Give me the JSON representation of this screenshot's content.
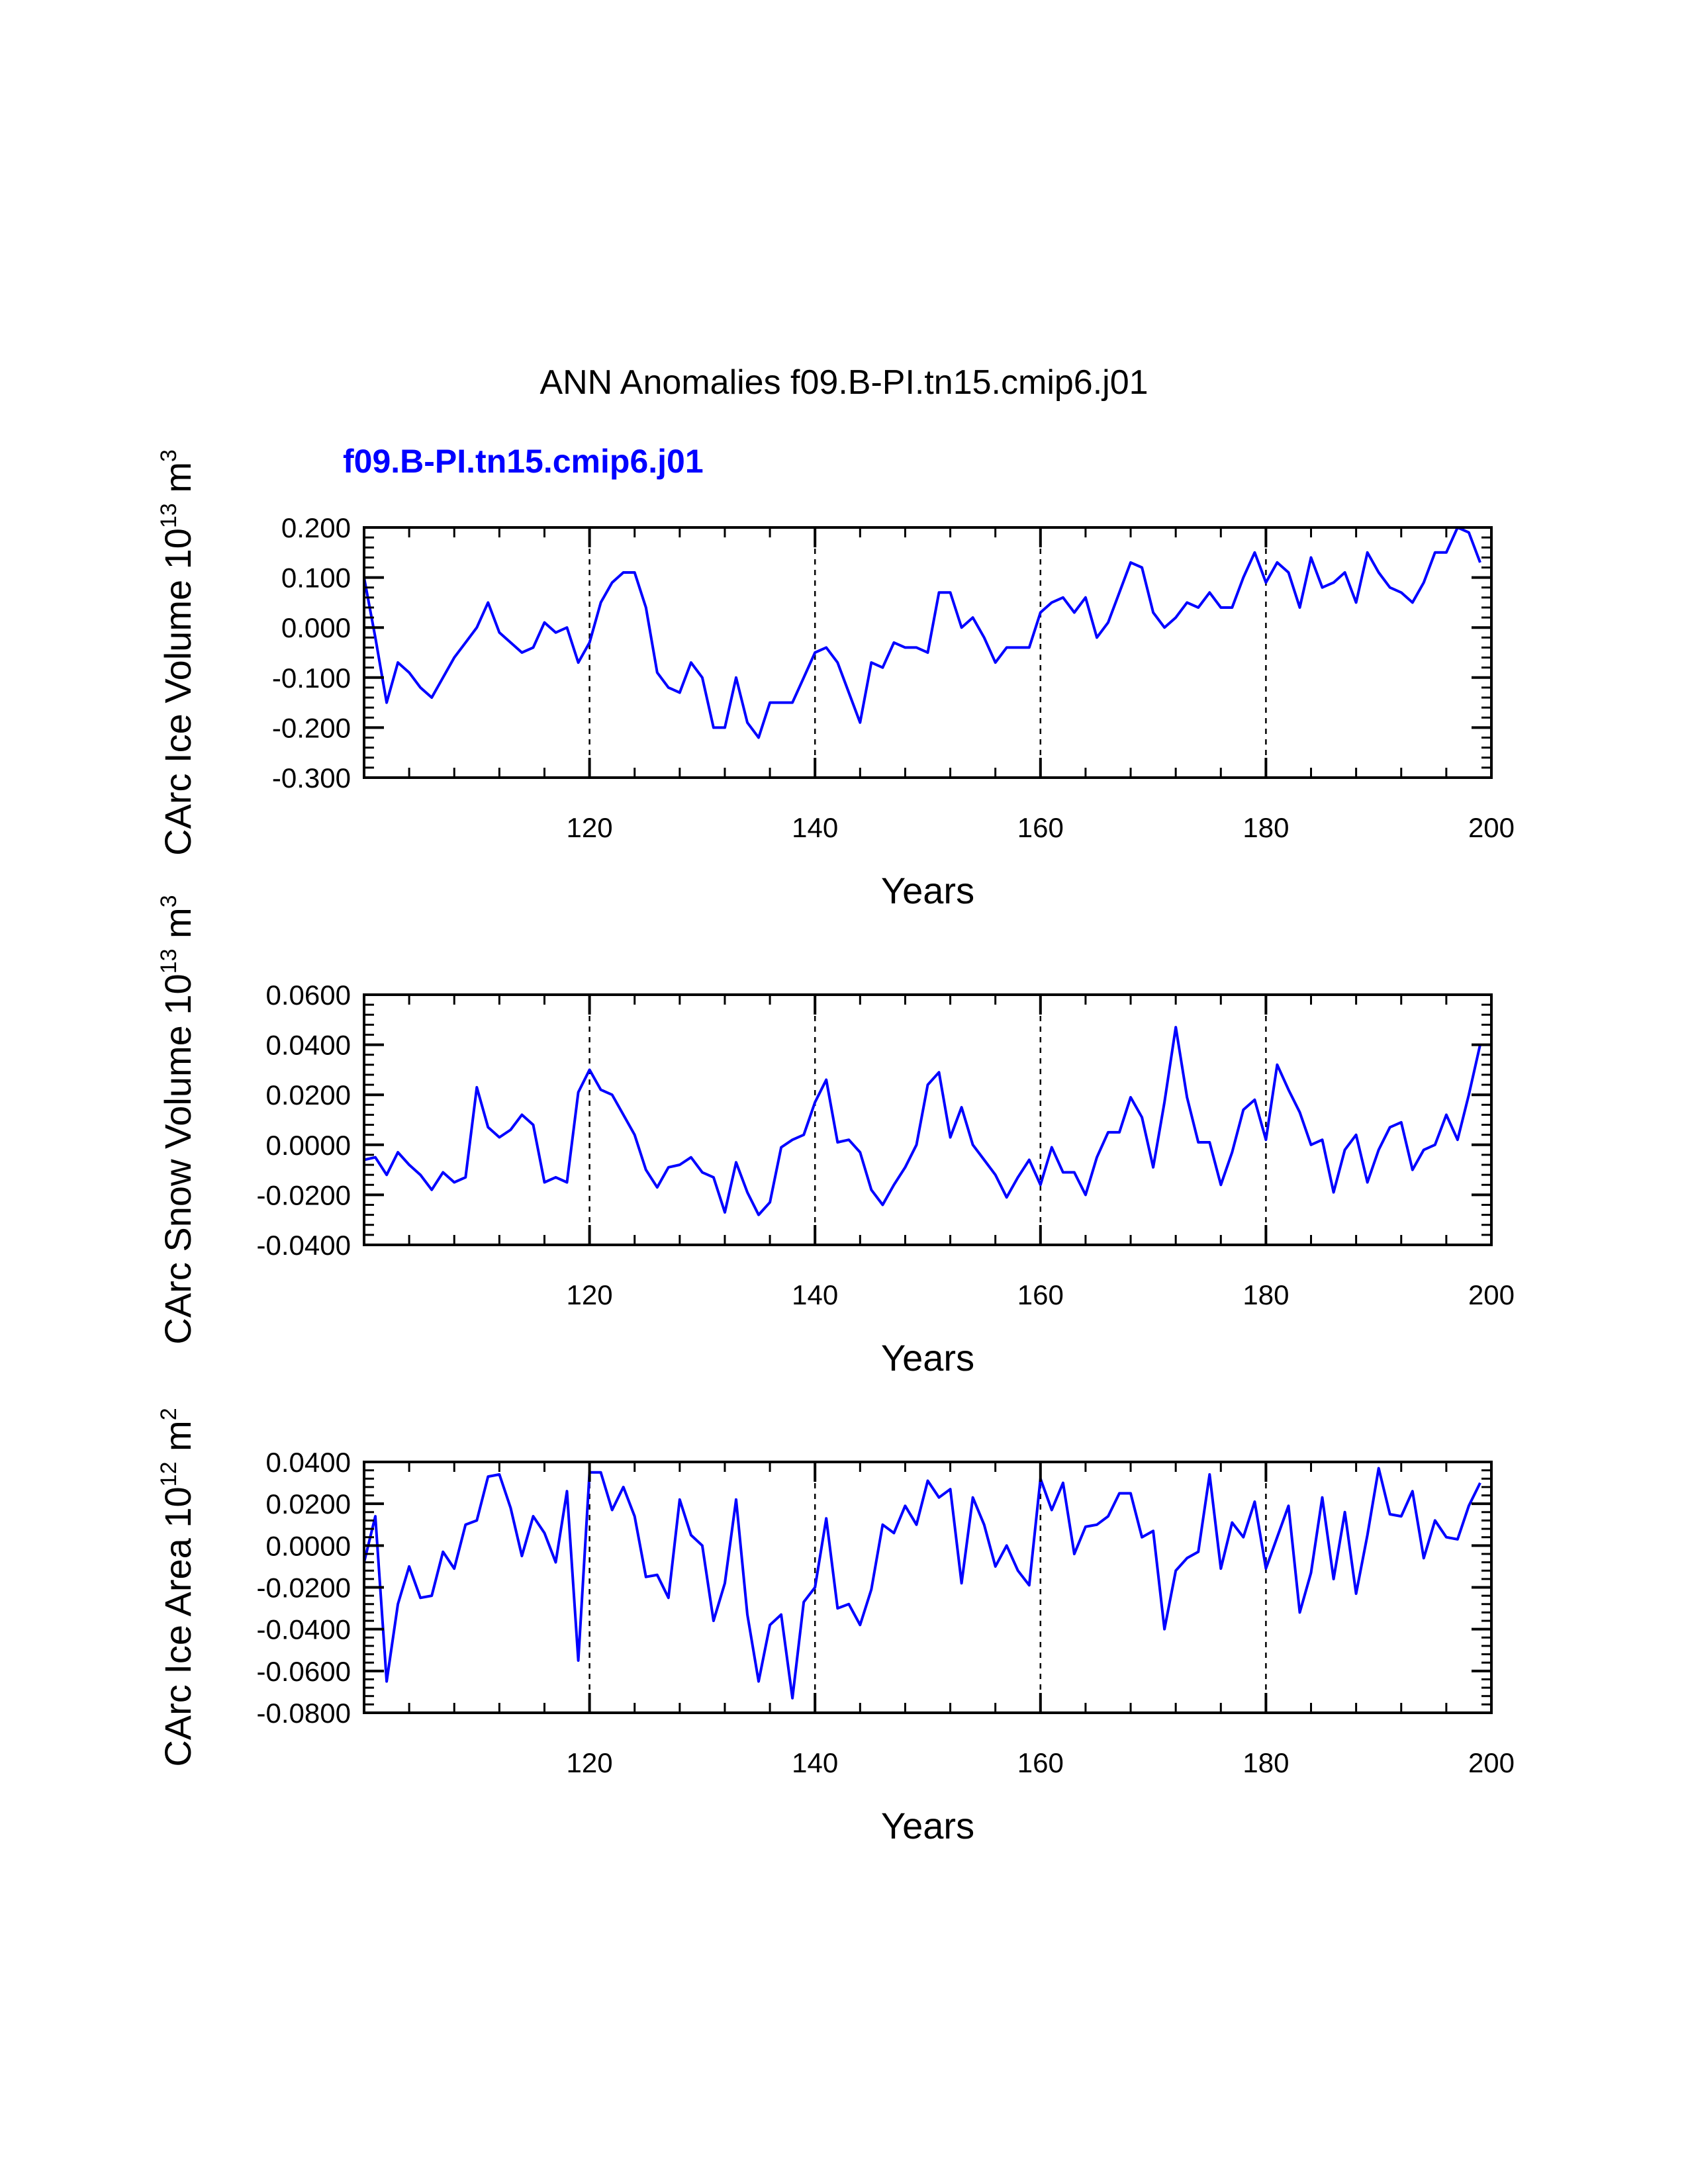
{
  "title": "ANN Anomalies f09.B-PI.tn15.cmip6.j01",
  "case_label": "f09.B-PI.tn15.cmip6.j01",
  "colors": {
    "series": "#0000ff",
    "axis": "#000000",
    "grid": "#000000"
  },
  "chart_data": [
    {
      "type": "line",
      "name": "ice-volume",
      "ylabel_main": "CArc Ice Volume 10",
      "ylabel_exp": "13",
      "ylabel_unit": " m",
      "ylabel_unit_exp": "3",
      "xlabel": "Years",
      "xlim": [
        100,
        200
      ],
      "ylim": [
        -0.3,
        0.2
      ],
      "xticks": [
        120,
        140,
        160,
        180,
        200
      ],
      "xtick_labels": [
        "120",
        "140",
        "160",
        "180",
        "200"
      ],
      "yticks": [
        0.2,
        0.1,
        0.0,
        -0.1,
        -0.2,
        -0.3
      ],
      "ytick_labels": [
        "0.200",
        "0.100",
        "0.000",
        "-0.100",
        "-0.200",
        "-0.300"
      ],
      "vgrid": [
        120,
        140,
        160,
        180
      ],
      "x_start": 100,
      "values": [
        0.1,
        -0.02,
        -0.15,
        -0.07,
        -0.09,
        -0.12,
        -0.14,
        -0.1,
        -0.06,
        -0.03,
        0.0,
        0.05,
        -0.01,
        -0.03,
        -0.05,
        -0.04,
        0.01,
        -0.01,
        0.0,
        -0.07,
        -0.03,
        0.05,
        0.09,
        0.11,
        0.11,
        0.04,
        -0.09,
        -0.12,
        -0.13,
        -0.07,
        -0.1,
        -0.2,
        -0.2,
        -0.1,
        -0.19,
        -0.22,
        -0.15,
        -0.15,
        -0.15,
        -0.1,
        -0.05,
        -0.04,
        -0.07,
        -0.13,
        -0.19,
        -0.07,
        -0.08,
        -0.03,
        -0.04,
        -0.04,
        -0.05,
        0.07,
        0.07,
        0.0,
        0.02,
        -0.02,
        -0.07,
        -0.04,
        -0.04,
        -0.04,
        0.03,
        0.05,
        0.06,
        0.03,
        0.06,
        -0.02,
        0.01,
        0.07,
        0.13,
        0.12,
        0.03,
        0.0,
        0.02,
        0.05,
        0.04,
        0.07,
        0.04,
        0.04,
        0.1,
        0.15,
        0.09,
        0.13,
        0.11,
        0.04,
        0.14,
        0.08,
        0.09,
        0.11,
        0.05,
        0.15,
        0.11,
        0.08,
        0.07,
        0.05,
        0.09,
        0.15,
        0.15,
        0.2,
        0.19,
        0.13
      ]
    },
    {
      "type": "line",
      "name": "snow-volume",
      "ylabel_main": "CArc Snow Volume 10",
      "ylabel_exp": "13",
      "ylabel_unit": " m",
      "ylabel_unit_exp": "3",
      "xlabel": "Years",
      "xlim": [
        100,
        200
      ],
      "ylim": [
        -0.04,
        0.06
      ],
      "xticks": [
        120,
        140,
        160,
        180,
        200
      ],
      "xtick_labels": [
        "120",
        "140",
        "160",
        "180",
        "200"
      ],
      "yticks": [
        0.06,
        0.04,
        0.02,
        0.0,
        -0.02,
        -0.04
      ],
      "ytick_labels": [
        "0.0600",
        "0.0400",
        "0.0200",
        "0.0000",
        "-0.0200",
        "-0.0400"
      ],
      "vgrid": [
        120,
        140,
        160,
        180
      ],
      "x_start": 100,
      "values": [
        -0.006,
        -0.005,
        -0.012,
        -0.003,
        -0.008,
        -0.012,
        -0.018,
        -0.011,
        -0.015,
        -0.013,
        0.023,
        0.007,
        0.003,
        0.006,
        0.012,
        0.008,
        -0.015,
        -0.013,
        -0.015,
        0.021,
        0.03,
        0.022,
        0.02,
        0.012,
        0.004,
        -0.01,
        -0.017,
        -0.009,
        -0.008,
        -0.005,
        -0.011,
        -0.013,
        -0.027,
        -0.007,
        -0.019,
        -0.028,
        -0.023,
        -0.001,
        0.002,
        0.004,
        0.017,
        0.026,
        0.001,
        0.002,
        -0.003,
        -0.018,
        -0.024,
        -0.016,
        -0.009,
        0.0,
        0.024,
        0.029,
        0.003,
        0.015,
        0.0,
        -0.006,
        -0.012,
        -0.021,
        -0.013,
        -0.006,
        -0.016,
        -0.001,
        -0.011,
        -0.011,
        -0.02,
        -0.005,
        0.005,
        0.005,
        0.019,
        0.011,
        -0.009,
        0.017,
        0.047,
        0.019,
        0.001,
        0.001,
        -0.016,
        -0.003,
        0.014,
        0.018,
        0.002,
        0.032,
        0.022,
        0.013,
        0.0,
        0.002,
        -0.019,
        -0.002,
        0.004,
        -0.015,
        -0.002,
        0.007,
        0.009,
        -0.01,
        -0.002,
        0.0,
        0.012,
        0.002,
        0.02,
        0.04
      ]
    },
    {
      "type": "line",
      "name": "ice-area",
      "ylabel_main": "CArc Ice Area 10",
      "ylabel_exp": "12",
      "ylabel_unit": " m",
      "ylabel_unit_exp": "2",
      "xlabel": "Years",
      "xlim": [
        100,
        200
      ],
      "ylim": [
        -0.08,
        0.04
      ],
      "xticks": [
        120,
        140,
        160,
        180,
        200
      ],
      "xtick_labels": [
        "120",
        "140",
        "160",
        "180",
        "200"
      ],
      "yticks": [
        0.04,
        0.02,
        0.0,
        -0.02,
        -0.04,
        -0.06,
        -0.08
      ],
      "ytick_labels": [
        "0.0400",
        "0.0200",
        "0.0000",
        "-0.0200",
        "-0.0400",
        "-0.0600",
        "-0.0800"
      ],
      "vgrid": [
        120,
        140,
        160,
        180
      ],
      "x_start": 100,
      "values": [
        -0.008,
        0.014,
        -0.065,
        -0.028,
        -0.01,
        -0.025,
        -0.024,
        -0.003,
        -0.011,
        0.01,
        0.012,
        0.033,
        0.034,
        0.018,
        -0.005,
        0.014,
        0.006,
        -0.008,
        0.026,
        -0.055,
        0.035,
        0.035,
        0.017,
        0.028,
        0.014,
        -0.015,
        -0.014,
        -0.025,
        0.022,
        0.005,
        0.0,
        -0.036,
        -0.018,
        0.022,
        -0.033,
        -0.065,
        -0.038,
        -0.033,
        -0.073,
        -0.027,
        -0.02,
        0.013,
        -0.03,
        -0.028,
        -0.038,
        -0.021,
        0.01,
        0.006,
        0.019,
        0.01,
        0.031,
        0.023,
        0.027,
        -0.018,
        0.023,
        0.01,
        -0.01,
        0.0,
        -0.012,
        -0.019,
        0.032,
        0.017,
        0.03,
        -0.004,
        0.009,
        0.01,
        0.014,
        0.025,
        0.025,
        0.004,
        0.007,
        -0.04,
        -0.012,
        -0.006,
        -0.003,
        0.034,
        -0.011,
        0.011,
        0.004,
        0.021,
        -0.011,
        0.004,
        0.019,
        -0.032,
        -0.013,
        0.023,
        -0.016,
        0.016,
        -0.023,
        0.005,
        0.037,
        0.015,
        0.014,
        0.026,
        -0.006,
        0.012,
        0.004,
        0.003,
        0.019,
        0.03
      ]
    }
  ]
}
